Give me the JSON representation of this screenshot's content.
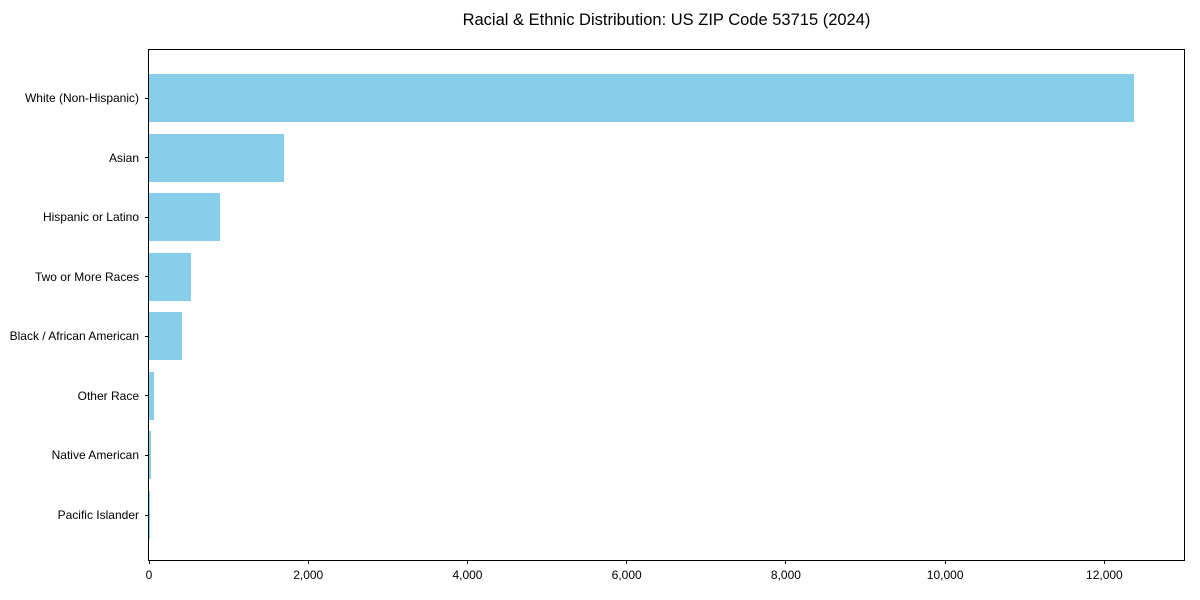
{
  "page": {
    "background_color": "#ffffff"
  },
  "chart_data": {
    "type": "bar",
    "orientation": "horizontal",
    "title": "Racial & Ethnic Distribution: US ZIP Code 53715 (2024)",
    "xlabel": "",
    "ylabel": "",
    "categories": [
      "White (Non-Hispanic)",
      "Asian",
      "Hispanic or Latino",
      "Two or More Races",
      "Black / African American",
      "Other Race",
      "Native American",
      "Pacific Islander"
    ],
    "values": [
      12370,
      1700,
      890,
      530,
      420,
      60,
      20,
      5
    ],
    "xlim": [
      0,
      13000
    ],
    "xticks": [
      0,
      2000,
      4000,
      6000,
      8000,
      10000,
      12000
    ],
    "xtick_labels": [
      "0",
      "2,000",
      "4,000",
      "6,000",
      "8,000",
      "10,000",
      "12,000"
    ],
    "bar_color": "#87CEEB",
    "axis_color": "#000000",
    "text_color": "#000000",
    "grid": false,
    "legend": null
  }
}
